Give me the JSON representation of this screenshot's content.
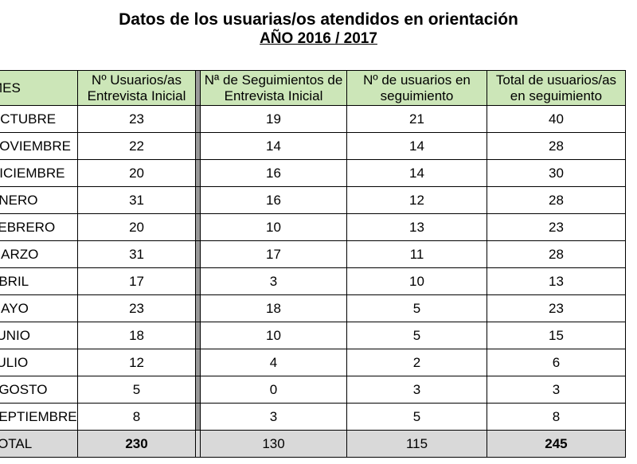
{
  "title": "Datos de los usuarias/os atendidos en orientación",
  "subtitle": "AÑO 2016 / 2017",
  "table": {
    "headers": [
      "MES",
      "Nº Usuarios/as Entrevista Inicial",
      "Nª de Seguimientos de Entrevista Inicial",
      "Nº de usuarios en seguimiento",
      "Total de usuarios/as en seguimiento"
    ],
    "rows": [
      [
        "OCTUBRE",
        "23",
        "19",
        "21",
        "40"
      ],
      [
        "NOVIEMBRE",
        "22",
        "14",
        "14",
        "28"
      ],
      [
        "DICIEMBRE",
        "20",
        "16",
        "14",
        "30"
      ],
      [
        "ENERO",
        "31",
        "16",
        "12",
        "28"
      ],
      [
        "FEBRERO",
        "20",
        "10",
        "13",
        "23"
      ],
      [
        "MARZO",
        "31",
        "17",
        "11",
        "28"
      ],
      [
        "ABRIL",
        "17",
        "3",
        "10",
        "13"
      ],
      [
        "MAYO",
        "23",
        "18",
        "5",
        "23"
      ],
      [
        "JUNIO",
        "18",
        "10",
        "5",
        "15"
      ],
      [
        "JULIO",
        "12",
        "4",
        "2",
        "6"
      ],
      [
        "AGOSTO",
        "5",
        "0",
        "3",
        "3"
      ],
      [
        "SEPTIEMBRE",
        "8",
        "3",
        "5",
        "8"
      ]
    ],
    "total": [
      "TOTAL",
      "230",
      "130",
      "115",
      "245"
    ]
  }
}
